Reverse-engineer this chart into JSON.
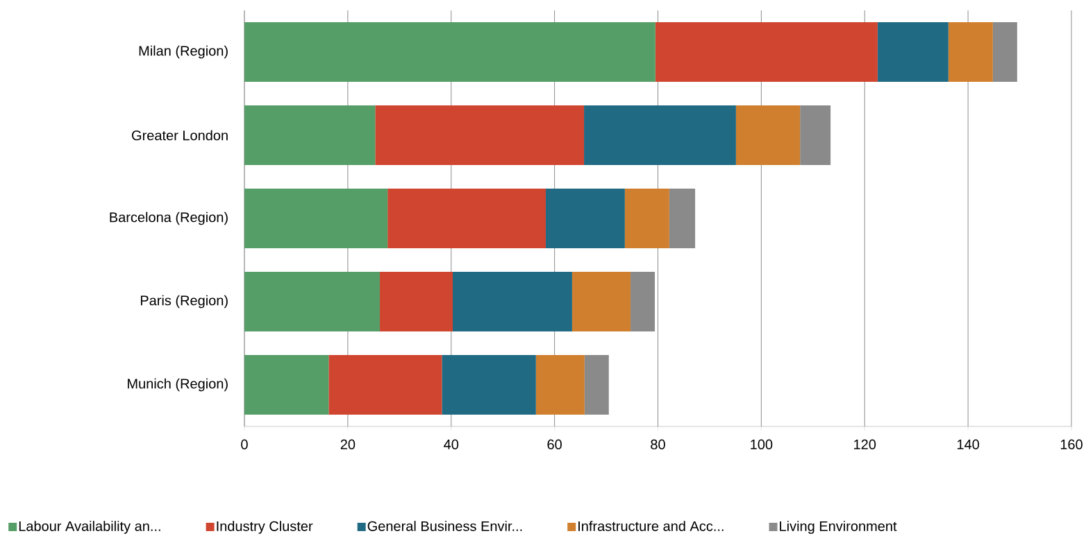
{
  "chart_data": {
    "type": "bar",
    "orientation": "horizontal",
    "stacked": true,
    "categories": [
      "Milan (Region)",
      "Greater London",
      "Barcelona (Region)",
      "Paris (Region)",
      "Munich (Region)"
    ],
    "series": [
      {
        "name": "Labour Availability an...",
        "color": "#559e67",
        "values": [
          79.5,
          25.3,
          27.7,
          26.2,
          16.3
        ]
      },
      {
        "name": "Industry Cluster",
        "color": "#d0452f",
        "values": [
          43.0,
          40.4,
          30.6,
          14.1,
          21.9
        ]
      },
      {
        "name": "General Business Envir...",
        "color": "#216a84",
        "values": [
          13.7,
          29.4,
          15.3,
          23.1,
          18.2
        ]
      },
      {
        "name": "Infrastructure and Acc...",
        "color": "#d07f2e",
        "values": [
          8.6,
          12.4,
          8.6,
          11.3,
          9.4
        ]
      },
      {
        "name": "Living Environment",
        "color": "#8a8a8a",
        "values": [
          4.7,
          5.9,
          5.0,
          4.7,
          4.7
        ]
      }
    ],
    "xlim": [
      0,
      160
    ],
    "xticks": [
      0,
      20,
      40,
      60,
      80,
      100,
      120,
      140,
      160
    ],
    "grid": "x",
    "legend": "bottom"
  }
}
